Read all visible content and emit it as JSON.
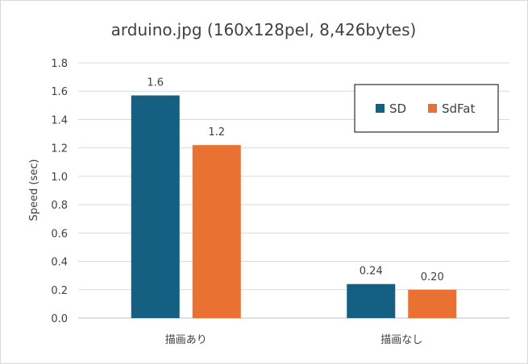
{
  "chart_data": {
    "type": "bar",
    "title": "arduino.jpg (160x128pel, 8,426bytes)",
    "xlabel": "",
    "ylabel": "Speed (sec)",
    "categories": [
      "描画あり",
      "描画なし"
    ],
    "series": [
      {
        "name": "SD",
        "values": [
          1.57,
          0.24
        ],
        "labels": [
          "1.6",
          "0.24"
        ],
        "color": "#156082"
      },
      {
        "name": "SdFat",
        "values": [
          1.22,
          0.2
        ],
        "labels": [
          "1.2",
          "0.20"
        ],
        "color": "#E97132"
      }
    ],
    "ylim": [
      0,
      1.8
    ],
    "yticks": [
      "0.0",
      "0.2",
      "0.4",
      "0.6",
      "0.8",
      "1.0",
      "1.2",
      "1.4",
      "1.6",
      "1.8"
    ],
    "grid": true,
    "legend": "top-right"
  }
}
